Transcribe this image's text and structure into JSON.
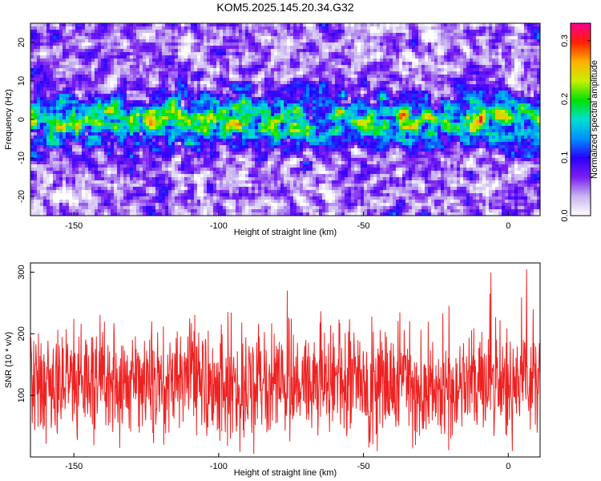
{
  "title": "KOM5.2025.145.20.34.G32",
  "chart_data": [
    {
      "type": "heatmap",
      "title": "KOM5.2025.145.20.34.G32",
      "xlabel": "Height of straight line (km)",
      "ylabel": "Frequency (Hz)",
      "xlim": [
        -165,
        11
      ],
      "ylim": [
        -25,
        25
      ],
      "x_ticks": [
        -150,
        -100,
        -50,
        0
      ],
      "y_ticks": [
        -20,
        -10,
        0,
        10,
        20
      ],
      "x_tick_labels": [
        "-150",
        "-100",
        "-50",
        "0"
      ],
      "y_tick_labels": [
        "-20",
        "-10",
        "0",
        "10",
        "20"
      ],
      "colorbar": {
        "label": "Normalized spectral amplitude",
        "range": [
          0.0,
          0.33
        ],
        "ticks": [
          0.0,
          0.1,
          0.2,
          0.3
        ],
        "tick_labels": [
          "0.0",
          "0.1",
          "0.2",
          "0.3"
        ],
        "colormap": [
          "#ffffff",
          "#c8b4f0",
          "#7a1ff0",
          "#2a00ff",
          "#0090ff",
          "#00e0d0",
          "#00e000",
          "#c8f000",
          "#ffb000",
          "#ff2000",
          "#ff0090"
        ]
      },
      "signal_band": {
        "center_hz": 0,
        "halfwidth_hz": 6,
        "peak_amplitude": 0.33
      },
      "grid": false
    },
    {
      "type": "line",
      "xlabel": "Height of straight line (km)",
      "ylabel": "SNR (10 * v/v)",
      "xlim": [
        -165,
        11
      ],
      "ylim": [
        0,
        315
      ],
      "x_ticks": [
        -150,
        -100,
        -50,
        0
      ],
      "y_ticks": [
        100,
        200,
        300
      ],
      "x_tick_labels": [
        "-150",
        "-100",
        "-50",
        "0"
      ],
      "y_tick_labels": [
        "100",
        "200",
        "300"
      ],
      "series": [
        {
          "color": "#ee2222",
          "mean": 118,
          "min": 5,
          "max": 312,
          "approx_points": 1400
        }
      ],
      "grid": false
    }
  ]
}
